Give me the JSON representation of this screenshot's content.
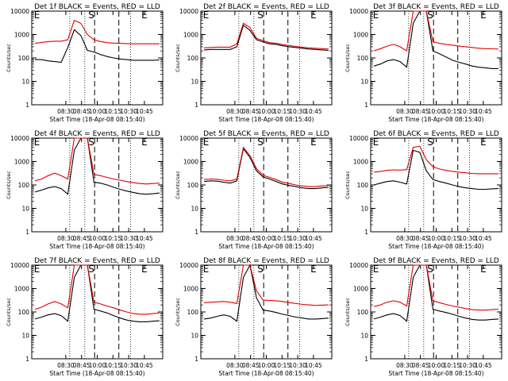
{
  "chart_data": [
    {
      "type": "line",
      "title": "Det 1f BLACK = Events, RED = LLD",
      "xlabel": "Start Time (18-Apr-08 08:15:40)",
      "ylabel": "Counts/sec",
      "yscale": "log",
      "ylim": [
        1,
        10000
      ],
      "xticks": [
        "08:30",
        "08:45",
        "10:00",
        "10:15",
        "10:30",
        "10:45"
      ],
      "yticks": [
        "1",
        "10",
        "100",
        "1000",
        "10000"
      ],
      "markers": [
        "E",
        "S",
        "E"
      ],
      "series": [
        {
          "name": "BLACK = Events",
          "color": "#000000",
          "values": [
            85,
            85,
            75,
            70,
            65,
            280,
            1600,
            900,
            210,
            180,
            140,
            115,
            100,
            90,
            85,
            80,
            80,
            80,
            80,
            82
          ]
        },
        {
          "name": "RED = LLD",
          "color": "#e00000",
          "values": [
            420,
            460,
            500,
            520,
            520,
            600,
            4000,
            3000,
            1000,
            600,
            500,
            450,
            430,
            420,
            410,
            400,
            400,
            400,
            400,
            400
          ]
        }
      ]
    },
    {
      "type": "line",
      "title": "Det 2f BLACK = Events, RED = LLD",
      "xlabel": "Start Time (18-Apr-08 08:15:40)",
      "ylabel": "Counts/sec",
      "yscale": "log",
      "ylim": [
        1,
        10000
      ],
      "xticks": [
        "08:30",
        "08:45",
        "10:00",
        "10:15",
        "10:30",
        "10:45"
      ],
      "yticks": [
        "1",
        "10",
        "100",
        "1000",
        "10000"
      ],
      "markers": [
        "E",
        "S",
        "E"
      ],
      "series": [
        {
          "name": "BLACK = Events",
          "color": "#000000",
          "values": [
            220,
            230,
            230,
            230,
            230,
            300,
            2500,
            1500,
            600,
            480,
            400,
            380,
            330,
            300,
            280,
            260,
            240,
            230,
            220,
            210
          ]
        },
        {
          "name": "RED = LLD",
          "color": "#e00000",
          "values": [
            270,
            280,
            290,
            290,
            290,
            400,
            3000,
            2000,
            700,
            550,
            450,
            420,
            370,
            340,
            310,
            290,
            270,
            260,
            250,
            240
          ]
        }
      ]
    },
    {
      "type": "line",
      "title": "Det 3f BLACK = Events, RED = LLD",
      "xlabel": "Start Time (18-Apr-08 08:15:40)",
      "ylabel": "Counts/sec",
      "yscale": "log",
      "ylim": [
        1,
        10000
      ],
      "xticks": [
        "08:30",
        "08:45",
        "10:00",
        "10:15",
        "10:30",
        "10:45"
      ],
      "yticks": [
        "1",
        "10",
        "100",
        "1000",
        "10000"
      ],
      "markers": [
        "E",
        "S",
        "E"
      ],
      "series": [
        {
          "name": "BLACK = Events",
          "color": "#000000",
          "values": [
            45,
            55,
            75,
            85,
            70,
            40,
            3000,
            10000,
            10000,
            200,
            150,
            110,
            80,
            65,
            55,
            45,
            40,
            38,
            35,
            35
          ]
        },
        {
          "name": "RED = LLD",
          "color": "#e00000",
          "values": [
            200,
            250,
            320,
            380,
            300,
            200,
            10000,
            10000,
            10000,
            500,
            420,
            380,
            350,
            320,
            300,
            280,
            260,
            250,
            245,
            240
          ]
        }
      ]
    },
    {
      "type": "line",
      "title": "Det 4f BLACK = Events, RED = LLD",
      "xlabel": "Start Time (18-Apr-08 08:15:40)",
      "ylabel": "Counts/sec",
      "yscale": "log",
      "ylim": [
        1,
        10000
      ],
      "xticks": [
        "08:30",
        "08:45",
        "10:00",
        "10:15",
        "10:30",
        "10:45"
      ],
      "yticks": [
        "1",
        "10",
        "100",
        "1000",
        "10000"
      ],
      "markers": [
        "E",
        "S",
        "E"
      ],
      "series": [
        {
          "name": "BLACK = Events",
          "color": "#000000",
          "values": [
            50,
            60,
            75,
            85,
            70,
            40,
            3000,
            10000,
            10000,
            130,
            120,
            100,
            80,
            65,
            55,
            48,
            42,
            40,
            42,
            45
          ]
        },
        {
          "name": "RED = LLD",
          "color": "#e00000",
          "values": [
            150,
            180,
            250,
            320,
            250,
            180,
            10000,
            10000,
            10000,
            280,
            250,
            210,
            180,
            160,
            140,
            125,
            115,
            110,
            115,
            120
          ]
        }
      ]
    },
    {
      "type": "line",
      "title": "Det 5f BLACK = Events, RED = LLD",
      "xlabel": "Start Time (18-Apr-08 08:15:40)",
      "ylabel": "Counts/sec",
      "yscale": "log",
      "ylim": [
        1,
        10000
      ],
      "xticks": [
        "08:30",
        "08:45",
        "10:00",
        "10:15",
        "10:30",
        "10:45"
      ],
      "yticks": [
        "1",
        "10",
        "100",
        "1000",
        "10000"
      ],
      "markers": [
        "E",
        "S",
        "E"
      ],
      "series": [
        {
          "name": "BLACK = Events",
          "color": "#000000",
          "values": [
            140,
            150,
            145,
            130,
            120,
            150,
            3500,
            1500,
            400,
            220,
            180,
            140,
            110,
            95,
            85,
            75,
            70,
            70,
            75,
            80
          ]
        },
        {
          "name": "RED = LLD",
          "color": "#e00000",
          "values": [
            170,
            180,
            175,
            160,
            150,
            180,
            4000,
            1800,
            500,
            260,
            210,
            170,
            130,
            115,
            100,
            90,
            85,
            85,
            90,
            95
          ]
        }
      ]
    },
    {
      "type": "line",
      "title": "Det 6f BLACK = Events, RED = LLD",
      "xlabel": "Start Time (18-Apr-08 08:15:40)",
      "ylabel": "Counts/sec",
      "yscale": "log",
      "ylim": [
        1,
        10000
      ],
      "xticks": [
        "08:30",
        "08:45",
        "10:00",
        "10:15",
        "10:30",
        "10:45"
      ],
      "yticks": [
        "1",
        "10",
        "100",
        "1000",
        "10000"
      ],
      "markers": [
        "E",
        "S",
        "E"
      ],
      "series": [
        {
          "name": "BLACK = Events",
          "color": "#000000",
          "values": [
            100,
            120,
            140,
            150,
            130,
            110,
            3000,
            2500,
            400,
            170,
            140,
            120,
            100,
            85,
            75,
            70,
            65,
            65,
            68,
            70
          ]
        },
        {
          "name": "RED = LLD",
          "color": "#e00000",
          "values": [
            350,
            380,
            420,
            440,
            430,
            450,
            4000,
            4500,
            1200,
            600,
            480,
            420,
            380,
            350,
            330,
            310,
            300,
            300,
            300,
            300
          ]
        }
      ]
    },
    {
      "type": "line",
      "title": "Det 7f BLACK = Events, RED = LLD",
      "xlabel": "Start Time (18-Apr-08 08:15:40)",
      "ylabel": "Counts/sec",
      "yscale": "log",
      "ylim": [
        1,
        10000
      ],
      "xticks": [
        "08:30",
        "08:45",
        "10:00",
        "10:15",
        "10:30",
        "10:45"
      ],
      "yticks": [
        "1",
        "10",
        "100",
        "1000",
        "10000"
      ],
      "markers": [
        "E",
        "S",
        "E"
      ],
      "series": [
        {
          "name": "BLACK = Events",
          "color": "#000000",
          "values": [
            50,
            60,
            75,
            85,
            70,
            40,
            3000,
            10000,
            10000,
            130,
            110,
            90,
            70,
            55,
            45,
            40,
            38,
            38,
            40,
            42
          ]
        },
        {
          "name": "RED = LLD",
          "color": "#e00000",
          "values": [
            130,
            160,
            220,
            280,
            220,
            150,
            10000,
            10000,
            10000,
            260,
            220,
            180,
            150,
            120,
            100,
            85,
            80,
            80,
            85,
            90
          ]
        }
      ]
    },
    {
      "type": "line",
      "title": "Det 8f BLACK = Events, RED = LLD",
      "xlabel": "Start Time (18-Apr-08 08:15:40)",
      "ylabel": "Counts/sec",
      "yscale": "log",
      "ylim": [
        1,
        10000
      ],
      "xticks": [
        "08:30",
        "08:45",
        "10:00",
        "10:15",
        "10:30",
        "10:45"
      ],
      "yticks": [
        "1",
        "10",
        "100",
        "1000",
        "10000"
      ],
      "markers": [
        "E",
        "S",
        "E"
      ],
      "series": [
        {
          "name": "BLACK = Events",
          "color": "#000000",
          "values": [
            50,
            55,
            65,
            75,
            65,
            40,
            3000,
            10000,
            400,
            120,
            110,
            95,
            80,
            70,
            60,
            55,
            50,
            50,
            52,
            55
          ]
        },
        {
          "name": "RED = LLD",
          "color": "#e00000",
          "values": [
            250,
            260,
            270,
            280,
            260,
            230,
            10000,
            10000,
            800,
            320,
            310,
            300,
            280,
            250,
            230,
            210,
            200,
            190,
            195,
            200
          ]
        }
      ]
    },
    {
      "type": "line",
      "title": "Det 9f BLACK = Events, RED = LLD",
      "xlabel": "Start Time (18-Apr-08 08:15:40)",
      "ylabel": "Counts/sec",
      "yscale": "log",
      "ylim": [
        1,
        10000
      ],
      "xticks": [
        "08:30",
        "08:45",
        "10:00",
        "10:15",
        "10:30",
        "10:45"
      ],
      "yticks": [
        "1",
        "10",
        "100",
        "1000",
        "10000"
      ],
      "markers": [
        "E",
        "S",
        "E"
      ],
      "series": [
        {
          "name": "BLACK = Events",
          "color": "#000000",
          "values": [
            50,
            60,
            75,
            85,
            70,
            40,
            3000,
            10000,
            10000,
            130,
            110,
            95,
            80,
            65,
            55,
            48,
            45,
            45,
            48,
            50
          ]
        },
        {
          "name": "RED = LLD",
          "color": "#e00000",
          "values": [
            170,
            200,
            260,
            300,
            260,
            180,
            10000,
            10000,
            10000,
            300,
            250,
            210,
            180,
            160,
            140,
            125,
            120,
            120,
            125,
            130
          ]
        }
      ]
    }
  ]
}
